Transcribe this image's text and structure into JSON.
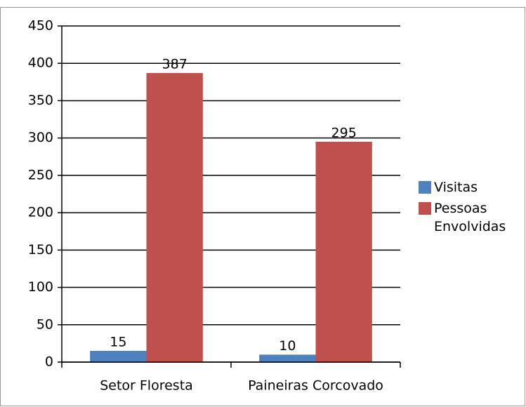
{
  "chart_data": {
    "type": "bar",
    "categories": [
      "Setor Floresta",
      "Paineiras Corcovado"
    ],
    "series": [
      {
        "name": "Visitas",
        "color": "#4f81bd",
        "values": [
          15,
          10
        ]
      },
      {
        "name": "Pessoas Envolvidas",
        "color": "#c0504d",
        "values": [
          387,
          295
        ]
      }
    ],
    "ylim": [
      0,
      450
    ],
    "yticks": [
      0,
      50,
      100,
      150,
      200,
      250,
      300,
      350,
      400,
      450
    ],
    "grid": true,
    "legend": "right"
  }
}
